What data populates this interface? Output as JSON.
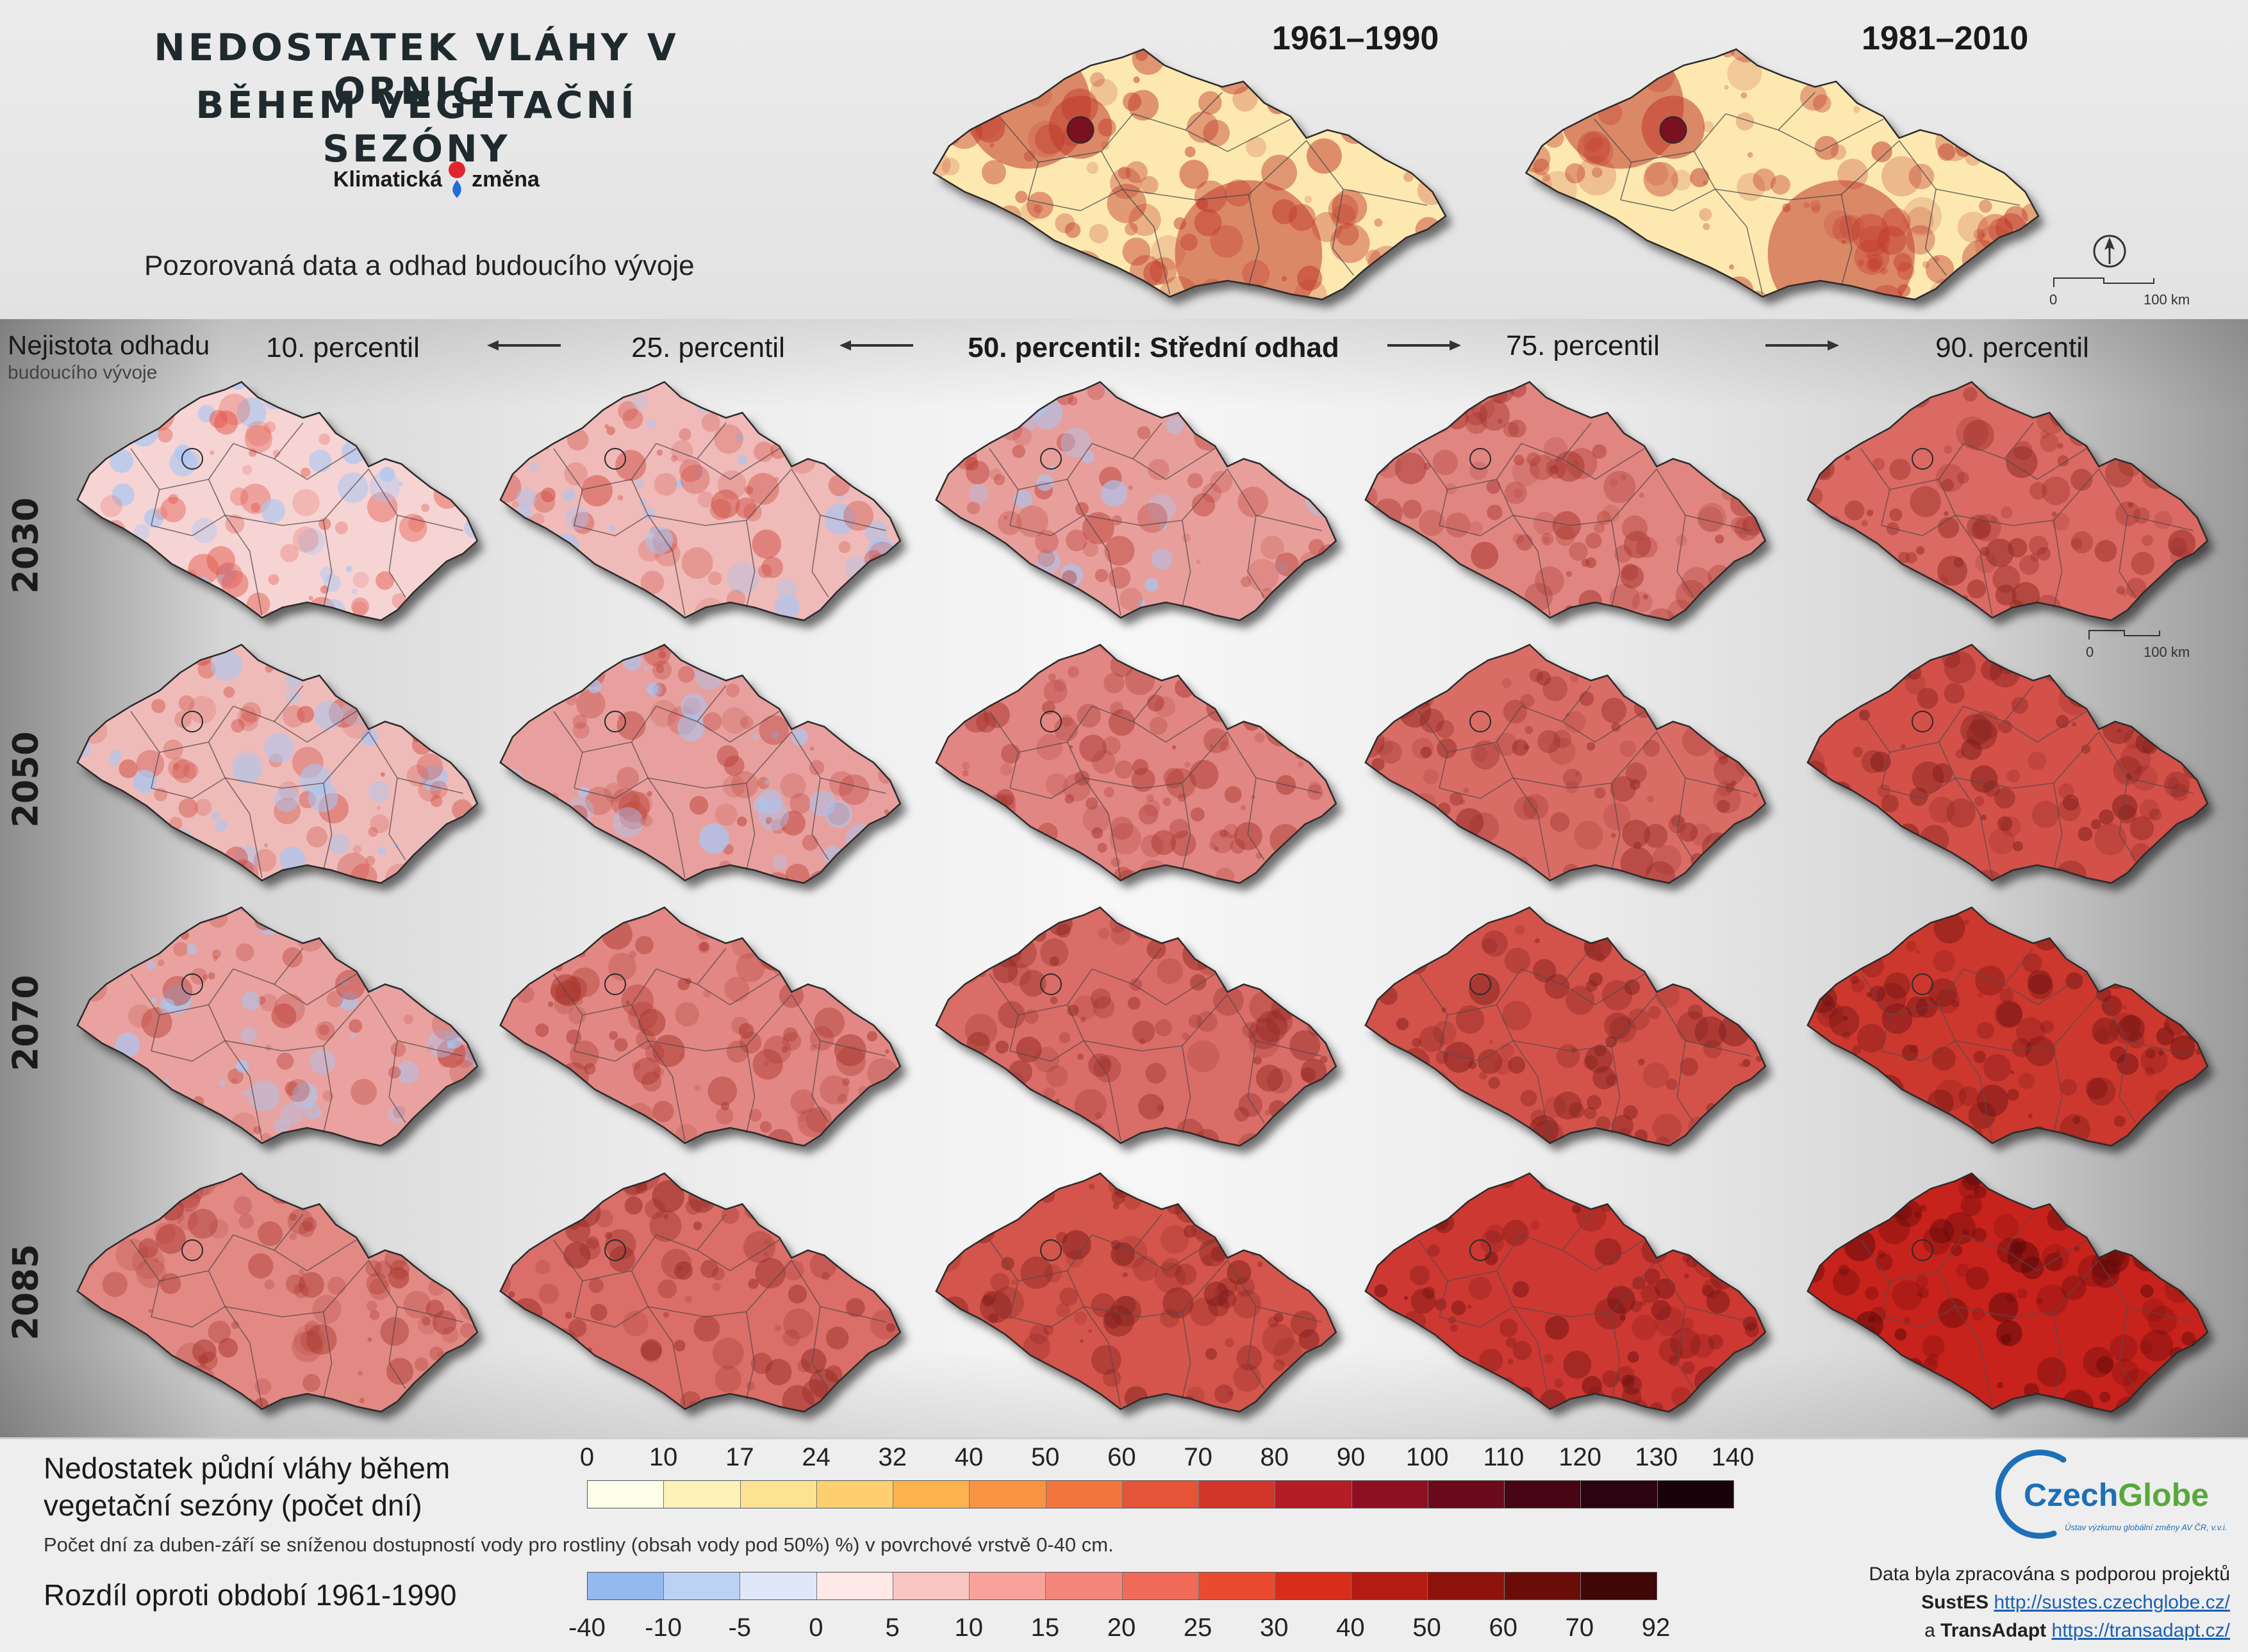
{
  "header": {
    "title_line1": "NEDOSTATEK VLÁHY V ORNICI",
    "title_line2": "BĚHEM VEGETAČNÍ SEZÓNY",
    "logo_left": "Klimatická",
    "logo_right": "změna",
    "subtitle": "Pozorovaná data a odhad budoucího vývoje"
  },
  "observed_maps": [
    {
      "period": "1961–1990"
    },
    {
      "period": "1981–2010"
    }
  ],
  "scalebar_top": {
    "zero": "0",
    "length": "100 km"
  },
  "scalebar_grid": {
    "zero": "0",
    "length": "100 km"
  },
  "uncertainty_label": {
    "line1": "Nejistota odhadu",
    "line2": "budoucího vývoje"
  },
  "columns": [
    {
      "label": "10. percentil",
      "level": 0
    },
    {
      "label": "25. percentil",
      "level": 1
    },
    {
      "label": "50. percentil: Střední odhad",
      "level": 2
    },
    {
      "label": "75. percentil",
      "level": 3
    },
    {
      "label": "90. percentil",
      "level": 4
    }
  ],
  "rows": [
    {
      "year": "2030",
      "intensity": 0
    },
    {
      "year": "2050",
      "intensity": 1
    },
    {
      "year": "2070",
      "intensity": 2
    },
    {
      "year": "2085",
      "intensity": 3
    }
  ],
  "legend_days": {
    "title_line1": "Nedostatek půdní vláhy během",
    "title_line2": "vegetační sezóny (počet dní)",
    "ticks": [
      "0",
      "10",
      "17",
      "24",
      "32",
      "40",
      "50",
      "60",
      "70",
      "80",
      "90",
      "100",
      "110",
      "120",
      "130",
      "140"
    ],
    "colors": [
      "#fefde8",
      "#fdf2b8",
      "#fde391",
      "#fdcf6e",
      "#fdb24e",
      "#f99344",
      "#f2753d",
      "#e55436",
      "#d23629",
      "#b41c26",
      "#8f0f22",
      "#6b0a1c",
      "#480514",
      "#2c0310",
      "#1a020a"
    ]
  },
  "legend_note": "Počet dní za duben-září se sníženou dostupností vody pro rostliny (obsah vody pod 50%) %) v povrchové vrstvě 0-40 cm.",
  "legend_diff": {
    "title": "Rozdíl oproti období 1961-1990",
    "ticks": [
      "-40",
      "-10",
      "-5",
      "0",
      "5",
      "10",
      "15",
      "20",
      "25",
      "30",
      "40",
      "50",
      "60",
      "70",
      "92"
    ],
    "colors": [
      "#93b9ee",
      "#bcd2f4",
      "#dfe8f8",
      "#fde9e8",
      "#fac6c2",
      "#f7a39c",
      "#f4867b",
      "#f06a58",
      "#ea4b30",
      "#d92d1b",
      "#b41b12",
      "#8e130d",
      "#6a0d09",
      "#3f0705"
    ]
  },
  "brand": {
    "name_part1": "Czech",
    "name_part2": "Globe",
    "tagline": "Ústav výzkumu globální změny AV ČR, v.v.i."
  },
  "credits": {
    "line1": "Data byla zpracována s podporou projektů",
    "project1": "SustES",
    "link1": "http://sustes.czechglobe.cz/",
    "connector": "a",
    "project2": "TransAdapt",
    "link2": "https://transadapt.cz/"
  },
  "colors": {
    "border": "#2b2b2b",
    "observed_light": "#fde9b0",
    "observed_dark": "#c0392b",
    "change_low": "#f6d4d4",
    "change_high": "#5a0808"
  }
}
